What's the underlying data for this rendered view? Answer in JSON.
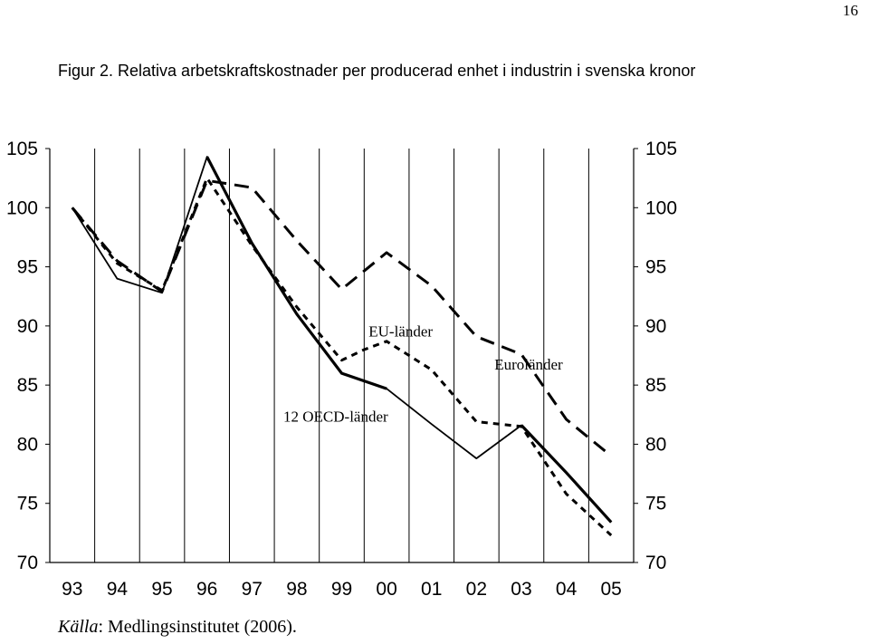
{
  "page": {
    "number": "16"
  },
  "title": "Figur 2. Relativa arbetskraftskostnader per producerad enhet i industrin i svenska kronor",
  "source": {
    "label": "Källa",
    "text": ": Medlingsinstitutet (2006)."
  },
  "chart_data": {
    "type": "line",
    "x": [
      "93",
      "94",
      "95",
      "96",
      "97",
      "98",
      "99",
      "00",
      "01",
      "02",
      "03",
      "04",
      "05"
    ],
    "xlim": [
      92.5,
      105.5
    ],
    "ylim": [
      70,
      105
    ],
    "yticks": [
      70,
      75,
      80,
      85,
      90,
      95,
      100,
      105
    ],
    "y_axis_both_sides": true,
    "grid": {
      "vertical": true,
      "horizontal": false
    },
    "legend": "inline labels",
    "series": [
      {
        "name": "12 OECD-länder",
        "style": "solid-thin",
        "x": [
          93,
          94,
          95,
          96,
          97,
          98,
          99,
          100,
          101,
          102,
          103,
          104,
          105
        ],
        "values": [
          100.0,
          94.0,
          92.8,
          104.3,
          97.0,
          91.0,
          86.0,
          84.7,
          81.7,
          78.8,
          81.6,
          77.6,
          73.4
        ]
      },
      {
        "name": "EU-länder",
        "style": "short-dash",
        "x": [
          93,
          94,
          95,
          96,
          97,
          98,
          99,
          99.5,
          100,
          101,
          102,
          103,
          104,
          105
        ],
        "values": [
          100.0,
          95.3,
          93.0,
          102.5,
          96.8,
          91.6,
          87.1,
          88.0,
          88.7,
          86.3,
          81.9,
          81.5,
          75.8,
          72.3
        ]
      },
      {
        "name": "Euroländer",
        "style": "long-dash",
        "x": [
          93,
          94,
          95,
          96,
          97,
          98,
          99,
          100,
          101,
          102,
          103,
          104,
          105
        ],
        "values": [
          100.0,
          95.5,
          92.9,
          102.3,
          101.7,
          97.2,
          93.1,
          96.2,
          93.4,
          89.1,
          87.6,
          82.1,
          79.0
        ]
      },
      {
        "name": "",
        "style": "solid-thick",
        "x": [
          96,
          97,
          98,
          99,
          100
        ],
        "values": [
          104.3,
          97.0,
          91.0,
          86.0,
          84.7
        ]
      },
      {
        "name": "",
        "style": "solid-thick",
        "x": [
          103,
          104,
          105
        ],
        "values": [
          81.6,
          77.6,
          73.4
        ]
      }
    ],
    "annotations": [
      {
        "text": "EU-länder",
        "x": 99.6,
        "y": 89.1
      },
      {
        "text": "Euroländer",
        "x": 102.4,
        "y": 86.3
      },
      {
        "text": "12 OECD-länder",
        "x": 97.7,
        "y": 81.9
      }
    ]
  }
}
